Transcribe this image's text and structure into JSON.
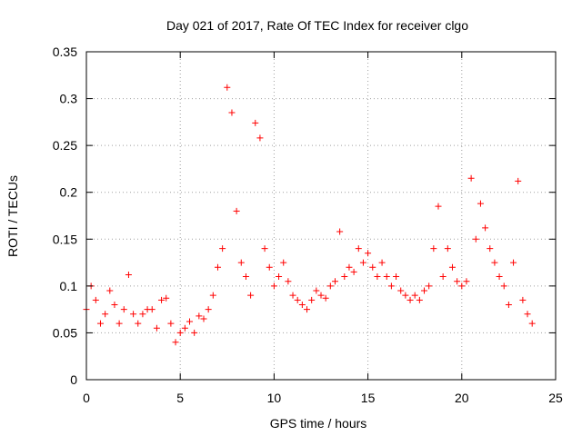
{
  "chart_data": {
    "type": "scatter",
    "title": "Day 021 of 2017, Rate Of TEC Index for receiver clgo",
    "xlabel": "GPS time / hours",
    "ylabel": "ROTI / TECUs",
    "xlim": [
      0,
      25
    ],
    "ylim": [
      0,
      0.35
    ],
    "xticks": [
      "0",
      "5",
      "10",
      "15",
      "20",
      "25"
    ],
    "yticks": [
      "0",
      "0.05",
      "0.1",
      "0.15",
      "0.2",
      "0.25",
      "0.3",
      "0.35"
    ],
    "grid": true,
    "marker": "+",
    "color": "#ff0000",
    "series": [
      {
        "x": [
          0.0,
          0.25,
          0.5,
          0.75,
          1.0,
          1.25,
          1.5,
          1.75,
          2.0,
          2.25,
          2.5,
          2.75,
          3.0,
          3.25,
          3.5,
          3.75,
          4.0,
          4.25,
          4.5,
          4.75,
          5.0,
          5.25,
          5.5,
          5.75,
          6.0,
          6.25,
          6.5,
          6.75,
          7.0,
          7.25,
          7.5,
          7.75,
          8.0,
          8.25,
          8.5,
          8.75,
          9.0,
          9.25,
          9.5,
          9.75,
          10.0,
          10.25,
          10.5,
          10.75,
          11.0,
          11.25,
          11.5,
          11.75,
          12.0,
          12.25,
          12.5,
          12.75,
          13.0,
          13.25,
          13.5,
          13.75,
          14.0,
          14.25,
          14.5,
          14.75,
          15.0,
          15.25,
          15.5,
          15.75,
          16.0,
          16.25,
          16.5,
          16.75,
          17.0,
          17.25,
          17.5,
          17.75,
          18.0,
          18.25,
          18.5,
          18.75,
          19.0,
          19.25,
          19.5,
          19.75,
          20.0,
          20.25,
          20.5,
          20.75,
          21.0,
          21.25,
          21.5,
          21.75,
          22.0,
          22.25,
          22.5,
          22.75,
          23.0,
          23.25,
          23.5,
          23.75
        ],
        "y": [
          0.075,
          0.1,
          0.085,
          0.06,
          0.07,
          0.095,
          0.08,
          0.06,
          0.075,
          0.112,
          0.07,
          0.06,
          0.07,
          0.075,
          0.075,
          0.055,
          0.085,
          0.087,
          0.06,
          0.04,
          0.05,
          0.055,
          0.062,
          0.05,
          0.068,
          0.065,
          0.075,
          0.09,
          0.12,
          0.14,
          0.312,
          0.285,
          0.18,
          0.125,
          0.11,
          0.09,
          0.274,
          0.258,
          0.14,
          0.12,
          0.1,
          0.11,
          0.125,
          0.105,
          0.09,
          0.085,
          0.08,
          0.075,
          0.085,
          0.095,
          0.09,
          0.087,
          0.1,
          0.105,
          0.158,
          0.11,
          0.12,
          0.115,
          0.14,
          0.125,
          0.135,
          0.12,
          0.11,
          0.125,
          0.11,
          0.1,
          0.11,
          0.095,
          0.09,
          0.085,
          0.09,
          0.085,
          0.095,
          0.1,
          0.14,
          0.185,
          0.11,
          0.14,
          0.12,
          0.105,
          0.1,
          0.105,
          0.215,
          0.15,
          0.188,
          0.162,
          0.14,
          0.125,
          0.11,
          0.1,
          0.08,
          0.125,
          0.212,
          0.085,
          0.07,
          0.06
        ]
      }
    ]
  }
}
